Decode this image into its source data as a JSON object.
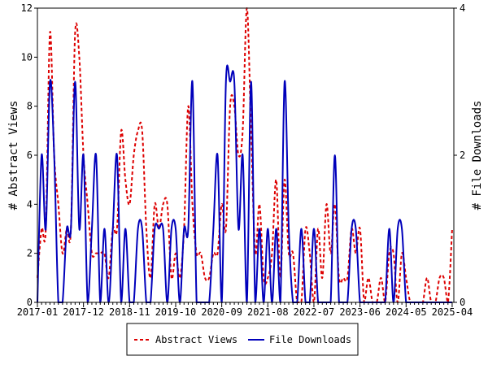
{
  "chart_data": {
    "type": "line",
    "title": "",
    "xlabel": "",
    "ylabel": "# Abstract Views",
    "ylabel_right": "# File Downloads",
    "ylim": [
      0,
      12
    ],
    "ylim_right": [
      0,
      4
    ],
    "yticks": [
      "0",
      "2",
      "4",
      "6",
      "8",
      "10",
      "12"
    ],
    "yticks_right": [
      "0",
      "2",
      "4"
    ],
    "x_start": "2017-01",
    "months": 100,
    "xtick_labels": [
      "2017-01",
      "2017-12",
      "2018-11",
      "2019-10",
      "2020-09",
      "2021-08",
      "2022-07",
      "2023-06",
      "2024-05",
      "2025-04"
    ],
    "legend_position": "bottom",
    "series": [
      {
        "name": "Abstract Views",
        "axis": "left",
        "color": "#dd0000",
        "style": "dashed",
        "values": [
          1,
          3,
          3,
          11,
          6,
          4,
          2,
          3,
          3,
          11,
          10,
          6,
          4,
          2,
          2,
          2,
          2,
          1,
          3,
          3,
          7,
          5,
          4,
          6,
          7,
          7,
          3,
          1,
          4,
          3,
          4,
          4,
          1,
          2,
          1,
          3,
          8,
          4,
          2,
          2,
          1,
          1,
          2,
          2,
          4,
          3,
          8,
          8,
          6,
          7,
          12,
          7,
          2,
          4,
          1,
          1,
          2,
          5,
          1,
          5,
          2,
          2,
          0,
          0,
          3,
          2,
          0,
          3,
          1,
          4,
          2,
          4,
          1,
          1,
          1,
          3,
          2,
          3,
          0,
          1,
          0,
          0,
          1,
          0,
          2,
          2,
          0,
          2,
          1,
          0,
          0,
          0,
          0,
          1,
          0,
          0,
          1,
          1,
          0,
          3
        ]
      },
      {
        "name": "File Downloads",
        "axis": "right",
        "color": "#0000bb",
        "style": "solid",
        "values": [
          0,
          2,
          1,
          3,
          2,
          0,
          0,
          1,
          1,
          3,
          1,
          2,
          0,
          1,
          2,
          0,
          1,
          0,
          1,
          2,
          0,
          1,
          0,
          0,
          1,
          1,
          0,
          0,
          1,
          1,
          1,
          0,
          1,
          1,
          0,
          1,
          1,
          3,
          0,
          0,
          0,
          0,
          1,
          2,
          0,
          3,
          3,
          3,
          1,
          2,
          0,
          3,
          0,
          1,
          0,
          1,
          0,
          1,
          0,
          3,
          1,
          0,
          0,
          1,
          0,
          0,
          1,
          0,
          0,
          0,
          0,
          2,
          0,
          0,
          0,
          1,
          1,
          0,
          0,
          0,
          0,
          0,
          0,
          0,
          1,
          0,
          1,
          1,
          0,
          0,
          0,
          0,
          0,
          0,
          0,
          0,
          0,
          0,
          0,
          0
        ]
      }
    ]
  }
}
